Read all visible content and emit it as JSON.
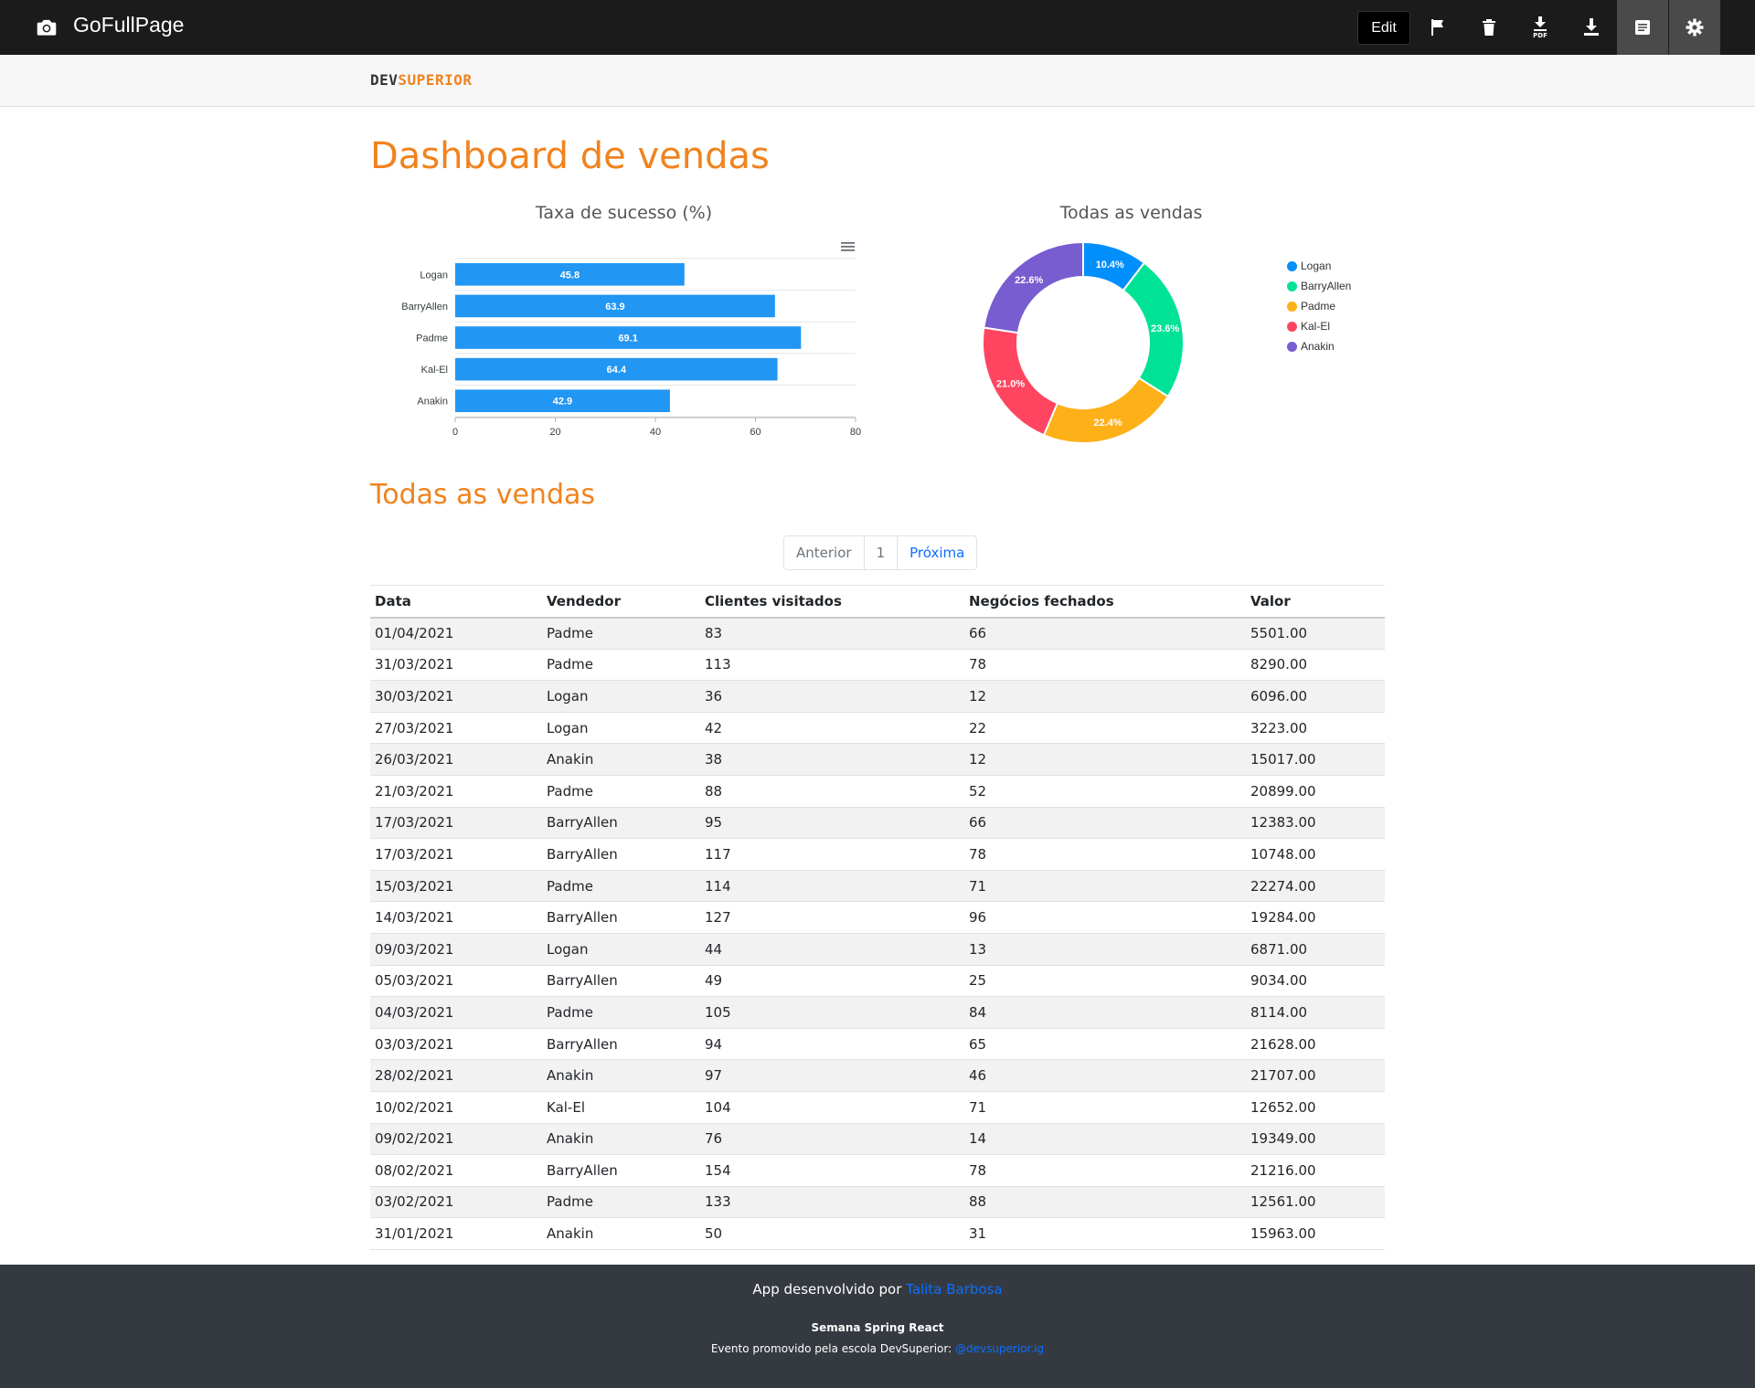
{
  "topbar": {
    "app_title": "GoFullPage",
    "edit_label": "Edit",
    "pdf_label": "PDF"
  },
  "navbar": {
    "logo_dev": "DEV",
    "logo_superior": "SUPERIOR"
  },
  "page_title": "Dashboard de vendas",
  "charts": {
    "bar_title": "Taxa de sucesso (%)",
    "donut_title": "Todas as vendas"
  },
  "chart_data": [
    {
      "type": "bar",
      "orientation": "horizontal",
      "title": "Taxa de sucesso (%)",
      "categories": [
        "Logan",
        "BarryAllen",
        "Padme",
        "Kal-El",
        "Anakin"
      ],
      "values": [
        45.8,
        63.9,
        69.1,
        64.4,
        42.9
      ],
      "xlim": [
        0,
        80
      ],
      "xticks": [
        0,
        20,
        40,
        60,
        80
      ],
      "color": "#2196f3",
      "data_labels": true,
      "grid": true
    },
    {
      "type": "pie",
      "variant": "donut",
      "title": "Todas as vendas",
      "labels": [
        "Logan",
        "BarryAllen",
        "Padme",
        "Kal-El",
        "Anakin"
      ],
      "values": [
        10.4,
        23.6,
        22.4,
        21.0,
        22.6
      ],
      "value_labels": [
        "10.4%",
        "23.6%",
        "22.4%",
        "21.0%",
        "22.6%"
      ],
      "colors": [
        "#008ffb",
        "#00e396",
        "#feb019",
        "#ff4560",
        "#775dd0"
      ],
      "legend": "right"
    }
  ],
  "section_title": "Todas as vendas",
  "pagination": {
    "prev": "Anterior",
    "page": "1",
    "next": "Próxima"
  },
  "table": {
    "headers": [
      "Data",
      "Vendedor",
      "Clientes visitados",
      "Negócios fechados",
      "Valor"
    ],
    "rows": [
      [
        "01/04/2021",
        "Padme",
        "83",
        "66",
        "5501.00"
      ],
      [
        "31/03/2021",
        "Padme",
        "113",
        "78",
        "8290.00"
      ],
      [
        "30/03/2021",
        "Logan",
        "36",
        "12",
        "6096.00"
      ],
      [
        "27/03/2021",
        "Logan",
        "42",
        "22",
        "3223.00"
      ],
      [
        "26/03/2021",
        "Anakin",
        "38",
        "12",
        "15017.00"
      ],
      [
        "21/03/2021",
        "Padme",
        "88",
        "52",
        "20899.00"
      ],
      [
        "17/03/2021",
        "BarryAllen",
        "95",
        "66",
        "12383.00"
      ],
      [
        "17/03/2021",
        "BarryAllen",
        "117",
        "78",
        "10748.00"
      ],
      [
        "15/03/2021",
        "Padme",
        "114",
        "71",
        "22274.00"
      ],
      [
        "14/03/2021",
        "BarryAllen",
        "127",
        "96",
        "19284.00"
      ],
      [
        "09/03/2021",
        "Logan",
        "44",
        "13",
        "6871.00"
      ],
      [
        "05/03/2021",
        "BarryAllen",
        "49",
        "25",
        "9034.00"
      ],
      [
        "04/03/2021",
        "Padme",
        "105",
        "84",
        "8114.00"
      ],
      [
        "03/03/2021",
        "BarryAllen",
        "94",
        "65",
        "21628.00"
      ],
      [
        "28/02/2021",
        "Anakin",
        "97",
        "46",
        "21707.00"
      ],
      [
        "10/02/2021",
        "Kal-El",
        "104",
        "71",
        "12652.00"
      ],
      [
        "09/02/2021",
        "Anakin",
        "76",
        "14",
        "19349.00"
      ],
      [
        "08/02/2021",
        "BarryAllen",
        "154",
        "78",
        "21216.00"
      ],
      [
        "03/02/2021",
        "Padme",
        "133",
        "88",
        "12561.00"
      ],
      [
        "31/01/2021",
        "Anakin",
        "50",
        "31",
        "15963.00"
      ]
    ]
  },
  "footer": {
    "dev_prefix": "App desenvolvido por ",
    "dev_name": "Talita Barbosa",
    "event_name": "Semana Spring React",
    "event_prefix": "Evento promovido pela escola DevSuperior: ",
    "event_handle": "@devsuperior.ig"
  }
}
